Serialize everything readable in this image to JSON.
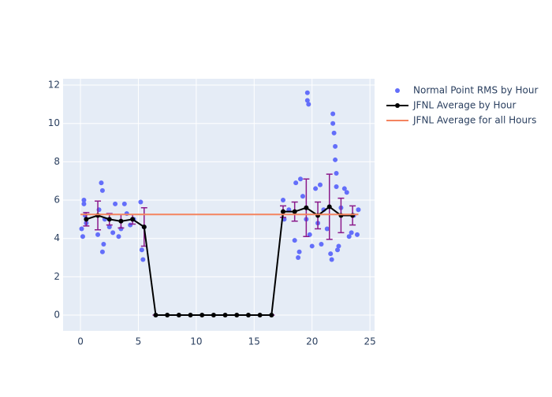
{
  "chart_data": {
    "type": "scatter",
    "xlim": [
      -1.5,
      25.4
    ],
    "ylim": [
      -0.82,
      12.33
    ],
    "xticks": [
      0,
      5,
      10,
      15,
      20,
      25
    ],
    "yticks": [
      0,
      2,
      4,
      6,
      8,
      10,
      12
    ],
    "grid": true,
    "background": "#e5ecf6",
    "series": [
      {
        "name": "Normal Point RMS by Hour",
        "mode": "markers",
        "color": "#636efa",
        "x": [
          0.1,
          0.2,
          0.3,
          0.3,
          0.4,
          0.5,
          1.5,
          1.6,
          1.8,
          1.9,
          1.9,
          2.0,
          2.1,
          2.5,
          2.8,
          3.0,
          3.3,
          3.5,
          3.8,
          4.0,
          4.3,
          4.6,
          5.2,
          5.3,
          5.4,
          5.5,
          17.5,
          17.6,
          18.0,
          18.5,
          18.6,
          18.8,
          18.9,
          19.0,
          19.2,
          19.5,
          19.6,
          19.6,
          19.7,
          19.8,
          20.0,
          20.3,
          20.5,
          20.7,
          20.8,
          21.0,
          21.3,
          21.6,
          21.7,
          21.8,
          21.8,
          21.9,
          22.0,
          22.0,
          22.1,
          22.1,
          22.2,
          22.3,
          22.5,
          22.8,
          23.0,
          23.2,
          23.4,
          23.6,
          23.9,
          24.0
        ],
        "values": [
          4.5,
          4.1,
          5.8,
          6.0,
          5.2,
          4.8,
          4.2,
          5.5,
          6.9,
          6.5,
          3.3,
          3.7,
          5.0,
          4.6,
          4.3,
          5.8,
          4.1,
          4.5,
          5.8,
          5.3,
          4.7,
          5.0,
          5.9,
          3.4,
          2.9,
          4.6,
          6.0,
          5.0,
          5.5,
          3.9,
          6.9,
          3.0,
          3.3,
          7.1,
          6.2,
          5.0,
          11.6,
          11.2,
          11.0,
          4.2,
          3.6,
          6.6,
          4.8,
          6.8,
          3.7,
          5.5,
          4.5,
          3.2,
          2.9,
          10.5,
          10.0,
          9.5,
          8.8,
          8.1,
          7.4,
          6.7,
          3.4,
          3.6,
          5.6,
          6.6,
          6.4,
          4.1,
          4.3,
          5.2,
          4.2,
          5.5
        ]
      },
      {
        "name": "JFNL Average by Hour",
        "mode": "lines+markers",
        "color": "#000000",
        "error_color": "#8b1a8b",
        "x": [
          0.5,
          1.5,
          2.5,
          3.5,
          4.5,
          5.5,
          6.5,
          7.5,
          8.5,
          9.5,
          10.5,
          11.5,
          12.5,
          13.5,
          14.5,
          15.5,
          16.5,
          17.5,
          18.5,
          19.5,
          20.5,
          21.5,
          22.5,
          23.5
        ],
        "values": [
          5.0,
          5.2,
          5.0,
          4.9,
          5.0,
          4.6,
          0,
          0,
          0,
          0,
          0,
          0,
          0,
          0,
          0,
          0,
          0,
          5.4,
          5.4,
          5.6,
          5.2,
          5.65,
          5.2,
          5.2
        ],
        "errors": [
          0.35,
          0.75,
          0.3,
          0.35,
          0.25,
          1.0,
          0,
          0,
          0,
          0,
          0,
          0,
          0,
          0,
          0,
          0,
          0,
          0.3,
          0.5,
          1.5,
          0.7,
          1.7,
          0.9,
          0.5
        ]
      },
      {
        "name": "JFNL Average for all Hours",
        "mode": "lines",
        "color": "#f4845f",
        "x": [
          0,
          24
        ],
        "values": [
          5.25,
          5.25
        ]
      }
    ]
  }
}
